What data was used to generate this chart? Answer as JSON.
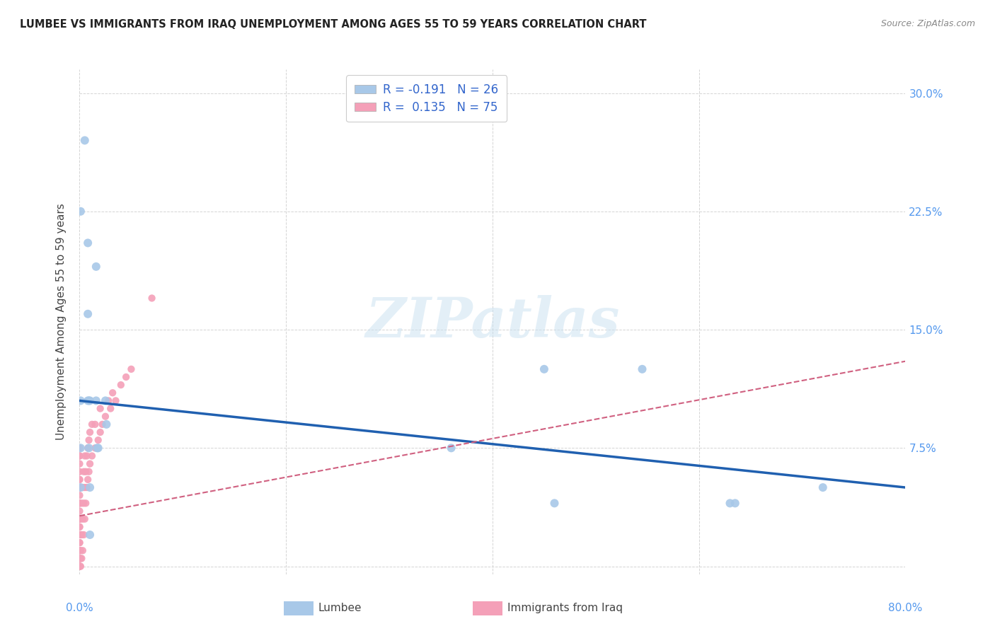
{
  "title": "LUMBEE VS IMMIGRANTS FROM IRAQ UNEMPLOYMENT AMONG AGES 55 TO 59 YEARS CORRELATION CHART",
  "source": "Source: ZipAtlas.com",
  "ylabel": "Unemployment Among Ages 55 to 59 years",
  "xmin": 0.0,
  "xmax": 0.8,
  "ymin": -0.005,
  "ymax": 0.315,
  "yticks": [
    0.0,
    0.075,
    0.15,
    0.225,
    0.3
  ],
  "ytick_labels": [
    "",
    "7.5%",
    "15.0%",
    "22.5%",
    "30.0%"
  ],
  "xticks": [
    0.0,
    0.2,
    0.4,
    0.6,
    0.8
  ],
  "xtick_labels_left": [
    "0.0%",
    "",
    "",
    "",
    ""
  ],
  "xtick_labels_right": [
    "",
    "",
    "",
    "",
    "80.0%"
  ],
  "grid_color": "#d0d0d0",
  "lumbee_color": "#a8c8e8",
  "iraq_color": "#f4a0b8",
  "lumbee_line_color": "#2060b0",
  "iraq_line_color": "#d06080",
  "lumbee_R": -0.191,
  "lumbee_N": 26,
  "iraq_R": 0.135,
  "iraq_N": 75,
  "lumbee_x": [
    0.005,
    0.001,
    0.008,
    0.016,
    0.008,
    0.009,
    0.01,
    0.001,
    0.008,
    0.025,
    0.016,
    0.026,
    0.009,
    0.017,
    0.018,
    0.001,
    0.001,
    0.01,
    0.01,
    0.45,
    0.36,
    0.46,
    0.63,
    0.545,
    0.635,
    0.72
  ],
  "lumbee_y": [
    0.27,
    0.225,
    0.205,
    0.19,
    0.16,
    0.105,
    0.105,
    0.105,
    0.105,
    0.105,
    0.105,
    0.09,
    0.075,
    0.075,
    0.075,
    0.075,
    0.05,
    0.05,
    0.02,
    0.125,
    0.075,
    0.04,
    0.04,
    0.125,
    0.04,
    0.05
  ],
  "iraq_x": [
    0.0,
    0.0,
    0.0,
    0.0,
    0.0,
    0.0,
    0.0,
    0.0,
    0.0,
    0.0,
    0.0,
    0.0,
    0.0,
    0.0,
    0.0,
    0.0,
    0.0,
    0.0,
    0.0,
    0.0,
    0.0,
    0.0,
    0.0,
    0.0,
    0.0,
    0.0,
    0.0,
    0.0,
    0.0,
    0.0,
    0.001,
    0.001,
    0.001,
    0.001,
    0.001,
    0.001,
    0.002,
    0.002,
    0.002,
    0.003,
    0.003,
    0.003,
    0.004,
    0.004,
    0.004,
    0.005,
    0.005,
    0.005,
    0.006,
    0.006,
    0.007,
    0.007,
    0.008,
    0.008,
    0.009,
    0.009,
    0.01,
    0.01,
    0.012,
    0.012,
    0.015,
    0.015,
    0.018,
    0.02,
    0.02,
    0.022,
    0.025,
    0.028,
    0.03,
    0.032,
    0.035,
    0.04,
    0.045,
    0.05,
    0.07
  ],
  "iraq_y": [
    0.0,
    0.0,
    0.0,
    0.0,
    0.0,
    0.005,
    0.005,
    0.01,
    0.01,
    0.015,
    0.015,
    0.02,
    0.02,
    0.025,
    0.025,
    0.03,
    0.03,
    0.035,
    0.04,
    0.04,
    0.045,
    0.05,
    0.05,
    0.055,
    0.055,
    0.06,
    0.065,
    0.07,
    0.07,
    0.075,
    0.0,
    0.005,
    0.01,
    0.02,
    0.03,
    0.05,
    0.005,
    0.02,
    0.04,
    0.01,
    0.03,
    0.05,
    0.02,
    0.04,
    0.06,
    0.03,
    0.05,
    0.07,
    0.04,
    0.06,
    0.05,
    0.07,
    0.055,
    0.075,
    0.06,
    0.08,
    0.065,
    0.085,
    0.07,
    0.09,
    0.075,
    0.09,
    0.08,
    0.085,
    0.1,
    0.09,
    0.095,
    0.105,
    0.1,
    0.11,
    0.105,
    0.115,
    0.12,
    0.125,
    0.17
  ],
  "lumbee_line_x0": 0.0,
  "lumbee_line_x1": 0.8,
  "lumbee_line_y0": 0.105,
  "lumbee_line_y1": 0.05,
  "iraq_line_x0": 0.0,
  "iraq_line_x1": 0.8,
  "iraq_line_y0": 0.032,
  "iraq_line_y1": 0.13
}
